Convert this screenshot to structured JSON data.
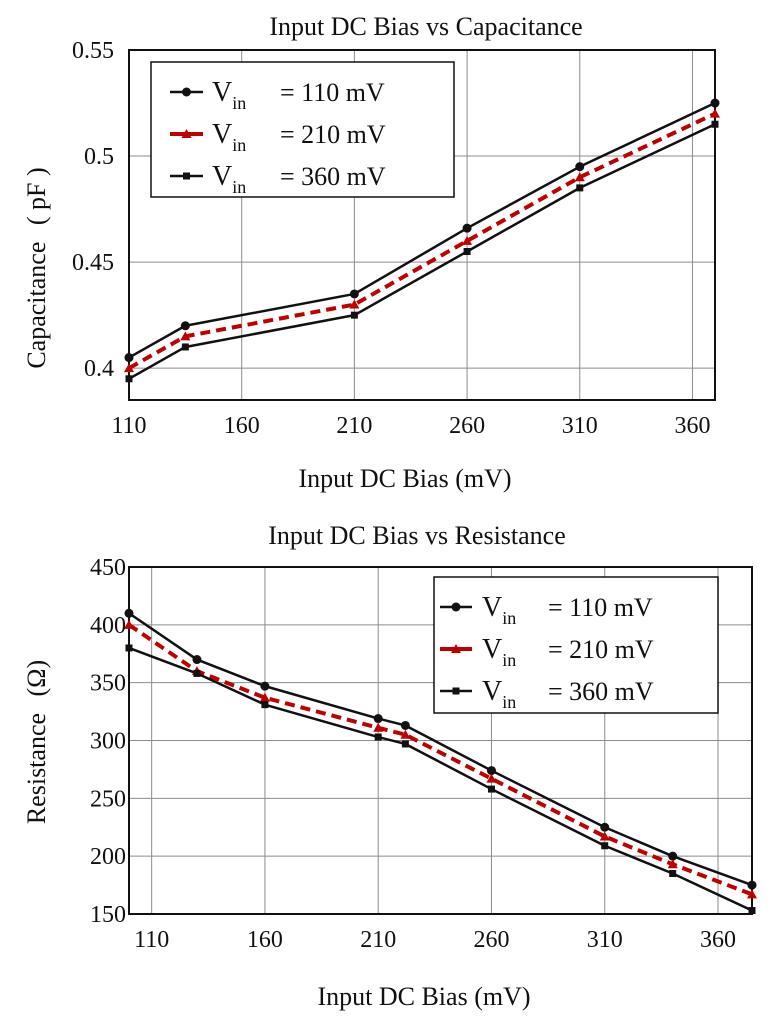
{
  "colors": {
    "black": "#111111",
    "red": "#c00000",
    "grid": "#8c8c8c"
  },
  "chart_data": [
    {
      "type": "line",
      "title": "Input DC Bias vs Capacitance",
      "xlabel": "Input DC Bias (mV)",
      "ylabel": "Capacitance",
      "ylabel_unit": "( pF )",
      "xlim": [
        110,
        370
      ],
      "ylim": [
        0.385,
        0.55
      ],
      "xticks": [
        "110",
        "160",
        "210",
        "260",
        "310",
        "360"
      ],
      "yticks": [
        "0.4",
        "0.45",
        "0.5",
        "0.55"
      ],
      "grid": true,
      "legend_position": "top-left",
      "series": [
        {
          "legend_prefix": "V",
          "legend_sub": "in",
          "legend_value": "= 110 mV",
          "marker": "circle",
          "color": "#111111",
          "dashed": false,
          "x": [
            110,
            135,
            210,
            260,
            310,
            370
          ],
          "y": [
            0.405,
            0.42,
            0.435,
            0.466,
            0.495,
            0.525
          ]
        },
        {
          "legend_prefix": "V",
          "legend_sub": "in",
          "legend_value": "= 210 mV",
          "marker": "triangle",
          "color": "#c00000",
          "dashed": true,
          "x": [
            110,
            135,
            210,
            260,
            310,
            370
          ],
          "y": [
            0.4,
            0.415,
            0.43,
            0.46,
            0.49,
            0.52
          ]
        },
        {
          "legend_prefix": "V",
          "legend_sub": "in",
          "legend_value": "= 360 mV",
          "marker": "square",
          "color": "#111111",
          "dashed": false,
          "x": [
            110,
            135,
            210,
            260,
            310,
            370
          ],
          "y": [
            0.395,
            0.41,
            0.425,
            0.455,
            0.485,
            0.515
          ]
        }
      ]
    },
    {
      "type": "line",
      "title": "Input DC Bias vs Resistance",
      "xlabel": "Input DC Bias (mV)",
      "ylabel": "Resistance",
      "ylabel_unit": "(Ω)",
      "xlim": [
        100,
        375
      ],
      "ylim": [
        150,
        450
      ],
      "xticks": [
        "110",
        "160",
        "210",
        "260",
        "310",
        "360"
      ],
      "yticks": [
        "150",
        "200",
        "250",
        "300",
        "350",
        "400",
        "450"
      ],
      "grid": true,
      "legend_position": "top-right",
      "series": [
        {
          "legend_prefix": "V",
          "legend_sub": "in",
          "legend_value": "= 110 mV",
          "marker": "circle",
          "color": "#111111",
          "dashed": false,
          "x": [
            100,
            130,
            160,
            210,
            222,
            260,
            310,
            340,
            375
          ],
          "y": [
            410,
            370,
            347,
            319,
            313,
            274,
            225,
            200,
            175
          ]
        },
        {
          "legend_prefix": "V",
          "legend_sub": "in",
          "legend_value": "= 210 mV",
          "marker": "triangle",
          "color": "#c00000",
          "dashed": true,
          "x": [
            100,
            130,
            160,
            210,
            222,
            260,
            310,
            340,
            375
          ],
          "y": [
            400,
            360,
            337,
            311,
            305,
            267,
            217,
            193,
            167
          ]
        },
        {
          "legend_prefix": "V",
          "legend_sub": "in",
          "legend_value": "= 360 mV",
          "marker": "square",
          "color": "#111111",
          "dashed": false,
          "x": [
            100,
            130,
            160,
            210,
            222,
            260,
            310,
            340,
            375
          ],
          "y": [
            380,
            358,
            331,
            303,
            297,
            258,
            209,
            185,
            153
          ]
        }
      ]
    }
  ]
}
